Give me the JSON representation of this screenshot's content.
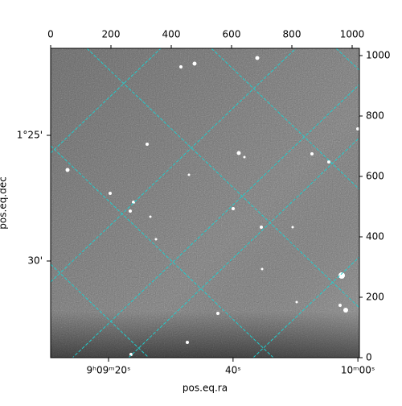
{
  "chart_data": {
    "type": "image",
    "xlabel": "pos.eq.ra",
    "ylabel": "pos.eq.dec",
    "xlim": [
      0,
      1024
    ],
    "ylim": [
      0,
      1024
    ],
    "xticks": [
      0,
      200,
      400,
      600,
      800,
      1000
    ],
    "yticks": [
      0,
      200,
      400,
      600,
      800,
      1000
    ],
    "ra_ticks": [
      {
        "value": 192,
        "label": "9ʰ09ᵐ20ˢ"
      },
      {
        "value": 605,
        "label": "40ˢ"
      },
      {
        "value": 1019,
        "label": "10ᵐ00ˢ"
      }
    ],
    "dec_ticks": [
      {
        "value": 736,
        "label": "1°25'"
      },
      {
        "value": 320,
        "label": "30'"
      }
    ],
    "grid": true,
    "grid_color": "#22cccc"
  }
}
